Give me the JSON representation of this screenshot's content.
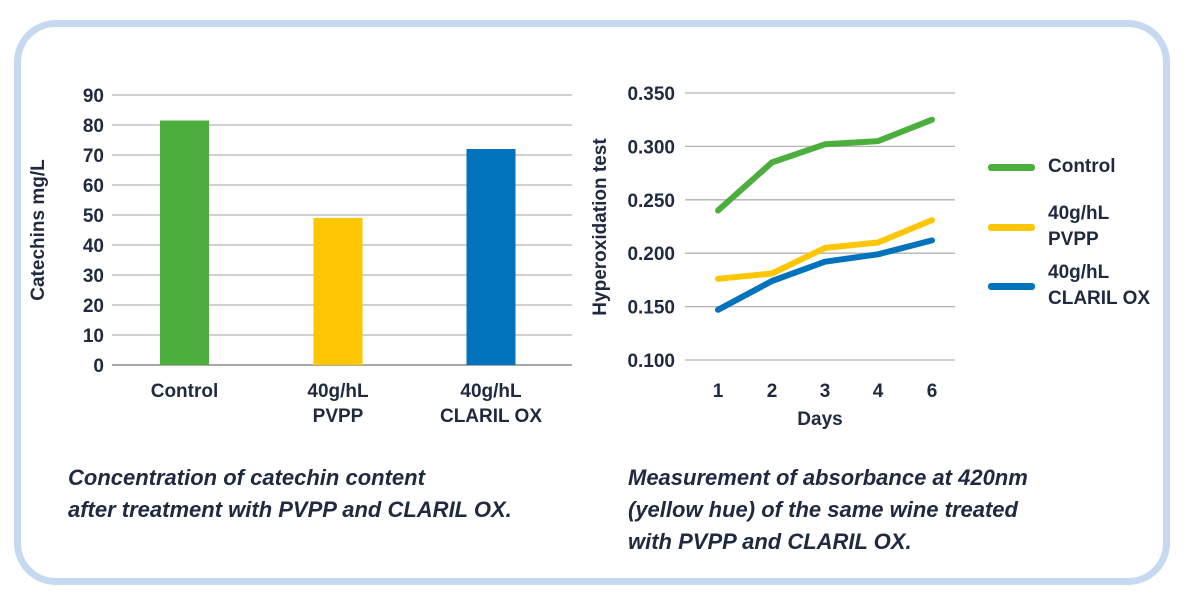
{
  "panel": {
    "border_color": "#c7d9f0"
  },
  "text_color": "#1f2a40",
  "grid_color": "#b3b3b3",
  "axis_color": "#9b9b9b",
  "chart_data": [
    {
      "id": "catechins-bar",
      "type": "bar",
      "title": "",
      "ylabel": "Catechins mg/L",
      "xlabel": "",
      "ylim": [
        0,
        90
      ],
      "grid": true,
      "yticks": [
        {
          "v": 90,
          "label": "90"
        },
        {
          "v": 80,
          "label": "80"
        },
        {
          "v": 70,
          "label": "70"
        },
        {
          "v": 60,
          "label": "60"
        },
        {
          "v": 50,
          "label": "50"
        },
        {
          "v": 40,
          "label": "40"
        },
        {
          "v": 30,
          "label": "30"
        },
        {
          "v": 20,
          "label": "20"
        },
        {
          "v": 10,
          "label": "10"
        },
        {
          "v": 0,
          "label": "0"
        }
      ],
      "categories": [
        {
          "name": "control",
          "lines": [
            "Control"
          ],
          "value": 81.5,
          "color": "#4cae3c"
        },
        {
          "name": "pvpp",
          "lines": [
            "40g/hL",
            "PVPP"
          ],
          "value": 49,
          "color": "#fdc602"
        },
        {
          "name": "claril-ox",
          "lines": [
            "40g/hL",
            "CLARIL OX"
          ],
          "value": 72,
          "color": "#0073bc"
        }
      ]
    },
    {
      "id": "hyperoxidation-line",
      "type": "line",
      "title": "",
      "ylabel": "Hyperoxidation test",
      "xlabel": "Days",
      "ylim": [
        0.1,
        0.35
      ],
      "grid": true,
      "legend_position": "right",
      "yticks": [
        {
          "v": 0.35,
          "label": "0.350"
        },
        {
          "v": 0.3,
          "label": "0.300"
        },
        {
          "v": 0.25,
          "label": "0.250"
        },
        {
          "v": 0.2,
          "label": "0.200"
        },
        {
          "v": 0.15,
          "label": "0.150"
        },
        {
          "v": 0.1,
          "label": "0.100"
        }
      ],
      "xticks": [
        "1",
        "2",
        "3",
        "4",
        "6"
      ],
      "series": [
        {
          "name": "Control",
          "color": "#4cae3c",
          "values": [
            0.24,
            0.285,
            0.302,
            0.305,
            0.325
          ]
        },
        {
          "name": "40g/hL PVPP",
          "color": "#fdc602",
          "values": [
            0.176,
            0.181,
            0.205,
            0.21,
            0.231
          ]
        },
        {
          "name": "40g/hL CLARIL OX",
          "color": "#0073bc",
          "values": [
            0.147,
            0.174,
            0.192,
            0.199,
            0.212
          ]
        }
      ]
    }
  ],
  "legend": {
    "items": [
      {
        "label": "Control",
        "color": "#4cae3c"
      },
      {
        "label": "40g/hL\nPVPP",
        "color": "#fdc602"
      },
      {
        "label": "40g/hL\nCLARIL OX",
        "color": "#0073bc"
      }
    ]
  },
  "captions": {
    "left": "Concentration of catechin content\nafter treatment with PVPP and CLARIL OX.",
    "right": "Measurement of absorbance at 420nm\n(yellow hue) of the same wine treated\nwith PVPP and CLARIL OX."
  }
}
